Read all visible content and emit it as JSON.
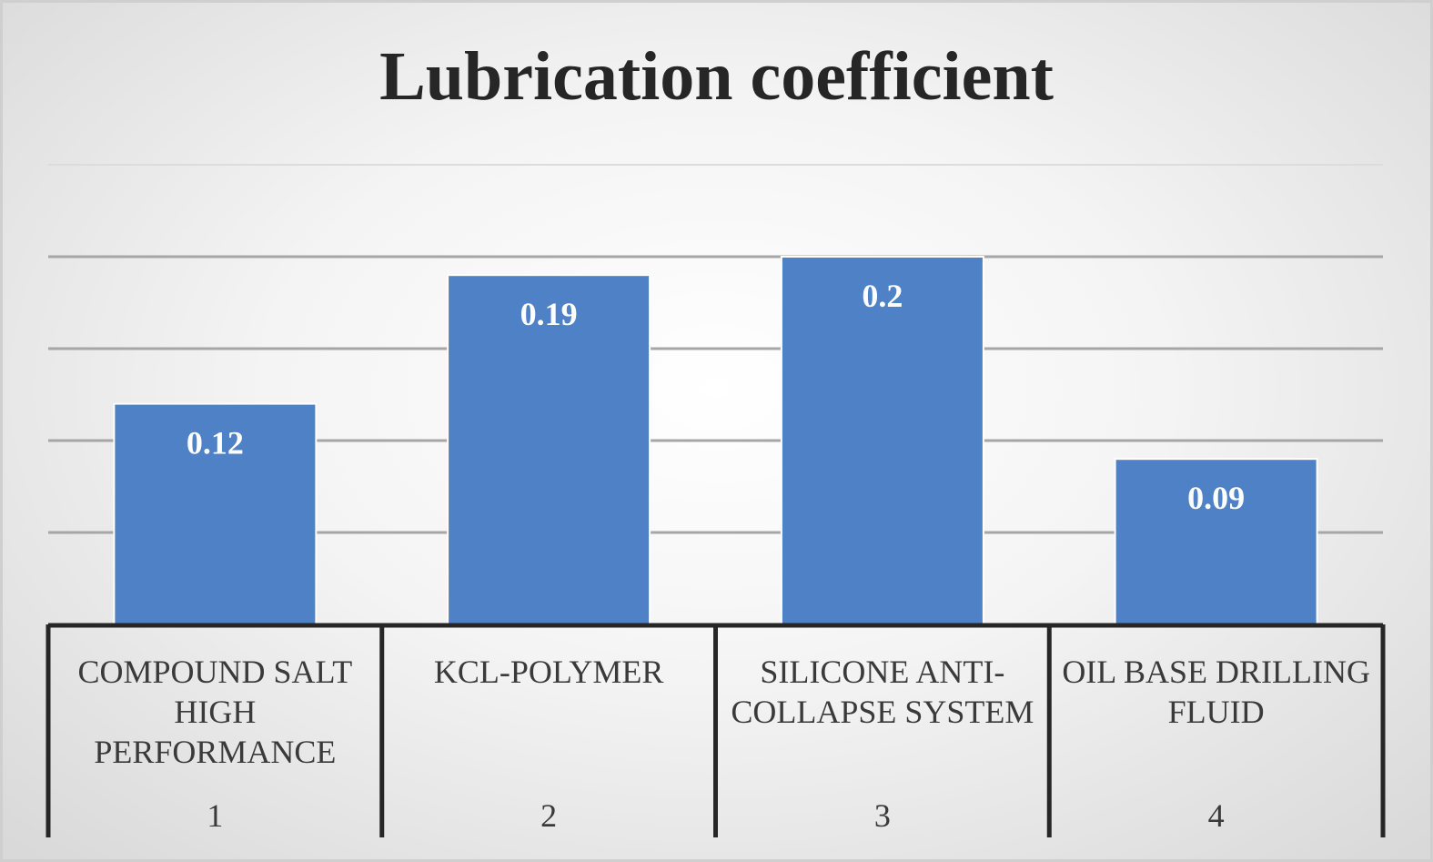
{
  "chart_data": {
    "type": "bar",
    "title": "Lubrication coefficient",
    "categories": [
      "COMPOUND SALT HIGH PERFORMANCE",
      "KCL-POLYMER",
      "SILICONE ANTI-COLLAPSE SYSTEM",
      "OIL BASE DRILLING FLUID"
    ],
    "category_index_labels": [
      "1",
      "2",
      "3",
      "4"
    ],
    "values": [
      0.12,
      0.19,
      0.2,
      0.09
    ],
    "data_labels": [
      "0.12",
      "0.19",
      "0.2",
      "0.09"
    ],
    "ylim": [
      0,
      0.25
    ],
    "gridlines": [
      0.05,
      0.1,
      0.15,
      0.2,
      0.25
    ],
    "grid": true,
    "bar_color": "#4f81c7",
    "data_label_color": "#ffffff",
    "legend": "none"
  }
}
